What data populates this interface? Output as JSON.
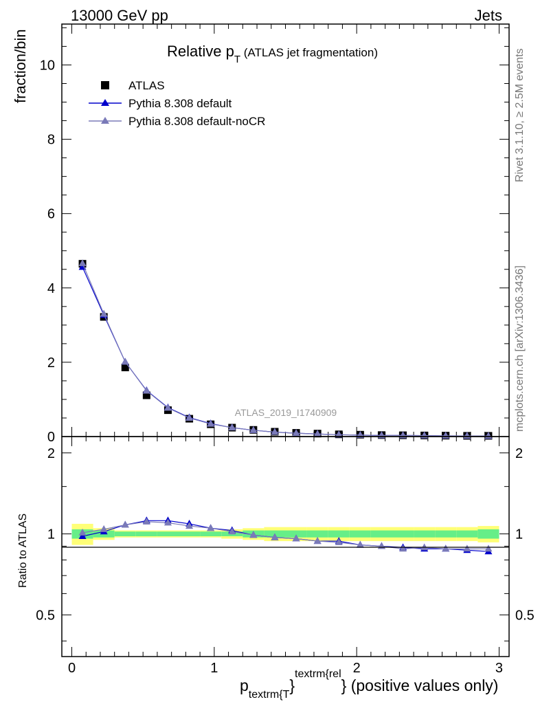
{
  "header": {
    "left": "13000 GeV pp",
    "right": "Jets"
  },
  "side_labels": {
    "rivet": "Rivet 3.1.10, ≥ 2.5M events",
    "mcplots": "mcplots.cern.ch [arXiv:1306.3436]"
  },
  "chart_data": {
    "type": "scatter",
    "title_main": "Relative p",
    "title_sub": "T",
    "title_rest": " (ATLAS jet fragmentation)",
    "watermark": "ATLAS_2019_I1740909",
    "ylabel": "fraction/bin",
    "ratio_ylabel": "Ratio to ATLAS",
    "xlabel_p": "p",
    "xlabel_sub": "textrm{T",
    "xlabel_brace": "}",
    "xlabel_sup": "textrm{rel",
    "xlabel_rest": "} (positive values only)",
    "xlim": [
      -0.07,
      3.07
    ],
    "ylim": [
      0,
      11.1
    ],
    "ratio_ylim": [
      0.35,
      2.3
    ],
    "x_ticks": [
      "0",
      "1",
      "2",
      "3"
    ],
    "y_ticks": [
      "0",
      "2",
      "4",
      "6",
      "8",
      "10"
    ],
    "ratio_ticks": [
      "0.5",
      "1",
      "2"
    ],
    "legend": [
      {
        "label": "ATLAS",
        "marker": "square",
        "color": "#000000"
      },
      {
        "label": "Pythia 8.308 default",
        "marker": "triangle",
        "color": "#0000cc"
      },
      {
        "label": "Pythia 8.308 default-noCR",
        "marker": "triangle",
        "color": "#7a7ab8"
      }
    ],
    "bin_edges": [
      0.0,
      0.15,
      0.3,
      0.45,
      0.6,
      0.75,
      0.9,
      1.05,
      1.2,
      1.35,
      1.5,
      1.65,
      1.8,
      1.95,
      2.1,
      2.25,
      2.4,
      2.55,
      2.7,
      2.85,
      3.0
    ],
    "x": [
      0.075,
      0.225,
      0.375,
      0.525,
      0.675,
      0.825,
      0.975,
      1.125,
      1.275,
      1.425,
      1.575,
      1.725,
      1.875,
      2.025,
      2.175,
      2.325,
      2.475,
      2.625,
      2.775,
      2.925
    ],
    "series": [
      {
        "name": "ATLAS",
        "color": "#000000",
        "values": [
          4.65,
          3.22,
          1.86,
          1.11,
          0.71,
          0.48,
          0.33,
          0.24,
          0.18,
          0.13,
          0.1,
          0.08,
          0.06,
          0.05,
          0.04,
          0.035,
          0.03,
          0.025,
          0.02,
          0.02
        ]
      },
      {
        "name": "Pythia 8.308 default",
        "color": "#0000cc",
        "values": [
          4.56,
          3.27,
          2.01,
          1.24,
          0.78,
          0.51,
          0.35,
          0.24,
          0.17,
          0.12,
          0.09,
          0.07,
          0.05,
          0.04,
          0.03,
          0.03,
          0.025,
          0.02,
          0.017,
          0.015
        ]
      },
      {
        "name": "Pythia 8.308 default-noCR",
        "color": "#7a7ab8",
        "values": [
          4.66,
          3.3,
          2.01,
          1.23,
          0.77,
          0.5,
          0.34,
          0.24,
          0.17,
          0.12,
          0.09,
          0.07,
          0.05,
          0.04,
          0.03,
          0.03,
          0.025,
          0.02,
          0.017,
          0.015
        ]
      }
    ],
    "ratio_series": [
      {
        "name": "Pythia 8.308 default",
        "color": "#0000cc",
        "values": [
          0.98,
          1.02,
          1.08,
          1.12,
          1.12,
          1.09,
          1.05,
          1.03,
          0.99,
          0.97,
          0.96,
          0.94,
          0.94,
          0.91,
          0.9,
          0.89,
          0.88,
          0.88,
          0.87,
          0.86
        ]
      },
      {
        "name": "Pythia 8.308 default-noCR",
        "color": "#7a7ab8",
        "values": [
          1.01,
          1.04,
          1.08,
          1.11,
          1.1,
          1.07,
          1.05,
          1.02,
          0.99,
          0.97,
          0.96,
          0.94,
          0.93,
          0.91,
          0.9,
          0.88,
          0.89,
          0.88,
          0.88,
          0.88
        ]
      }
    ],
    "ratio_band_stat": [
      0.04,
      0.03,
      0.02,
      0.02,
      0.02,
      0.02,
      0.02,
      0.02,
      0.03,
      0.03,
      0.03,
      0.03,
      0.03,
      0.03,
      0.03,
      0.03,
      0.03,
      0.03,
      0.03,
      0.04
    ],
    "ratio_band_total": [
      0.09,
      0.05,
      0.03,
      0.03,
      0.03,
      0.03,
      0.03,
      0.04,
      0.05,
      0.06,
      0.06,
      0.06,
      0.06,
      0.06,
      0.06,
      0.06,
      0.06,
      0.06,
      0.06,
      0.07
    ],
    "band_colors": {
      "stat": "#66ee88",
      "total": "#ffff77"
    }
  }
}
